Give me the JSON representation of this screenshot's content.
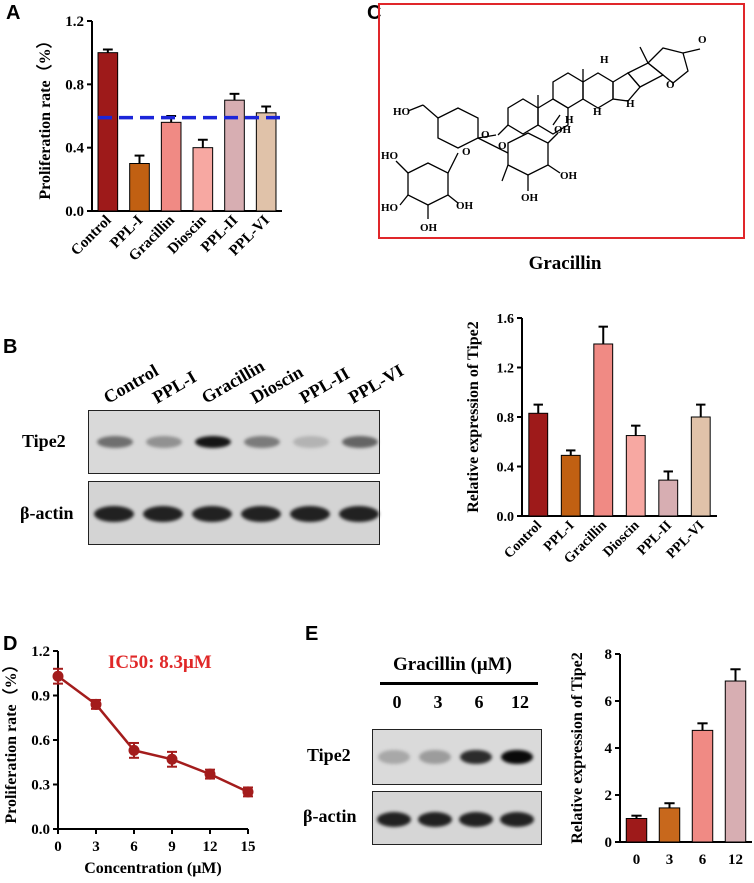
{
  "panels": {
    "A": "A",
    "B": "B",
    "C": "C",
    "D": "D",
    "E": "E"
  },
  "chartA": {
    "type": "bar",
    "ylabel": "Proliferation rate（%）",
    "ylim": [
      0,
      1.2
    ],
    "yticks": [
      "0.0",
      "0.4",
      "0.8",
      "1.2"
    ],
    "categories": [
      "Control",
      "PPL-I",
      "Gracillin",
      "Dioscin",
      "PPL-II",
      "PPL-VI"
    ],
    "values": [
      1.0,
      0.3,
      0.56,
      0.4,
      0.7,
      0.62
    ],
    "errors": [
      0.02,
      0.05,
      0.04,
      0.05,
      0.04,
      0.04
    ],
    "colors": [
      "#9e1a1a",
      "#c16012",
      "#f08a84",
      "#f7a8a2",
      "#d7aeb2",
      "#e0c2a9"
    ],
    "threshold": 0.59,
    "threshold_color": "#1b25d9"
  },
  "chartB": {
    "type": "bar",
    "ylabel": "Relative expression of Tipe2",
    "ylim": [
      0,
      1.6
    ],
    "yticks": [
      "0.0",
      "0.4",
      "0.8",
      "1.2",
      "1.6"
    ],
    "categories": [
      "Control",
      "PPL-I",
      "Gracillin",
      "Dioscin",
      "PPL-II",
      "PPL-VI"
    ],
    "values": [
      0.83,
      0.49,
      1.39,
      0.65,
      0.29,
      0.8
    ],
    "errors": [
      0.07,
      0.04,
      0.14,
      0.08,
      0.07,
      0.1
    ],
    "colors": [
      "#9e1a1a",
      "#c16012",
      "#f08a84",
      "#f7a8a2",
      "#d7aeb2",
      "#e0c2a9"
    ]
  },
  "chartD": {
    "type": "line",
    "xlabel": "Concentration (μM)",
    "ylabel": "Proliferation rate（%）",
    "xlim": [
      0,
      15
    ],
    "ylim": [
      0,
      1.2
    ],
    "xticks": [
      "0",
      "3",
      "6",
      "9",
      "12",
      "15"
    ],
    "yticks": [
      "0.0",
      "0.3",
      "0.6",
      "0.9",
      "1.2"
    ],
    "x": [
      0,
      3,
      6,
      9,
      12,
      15
    ],
    "values": [
      1.03,
      0.84,
      0.53,
      0.47,
      0.37,
      0.25
    ],
    "errors": [
      0.05,
      0.03,
      0.05,
      0.05,
      0.03,
      0.03
    ],
    "color": "#a31c1c",
    "annotation": "IC50: 8.3μM"
  },
  "chartE": {
    "type": "bar",
    "ylabel": "Relative expression of Tipe2",
    "ylim": [
      0,
      8
    ],
    "yticks": [
      "0",
      "2",
      "4",
      "6",
      "8"
    ],
    "categories": [
      "0",
      "3",
      "6",
      "12"
    ],
    "values": [
      1.0,
      1.45,
      4.75,
      6.85
    ],
    "errors": [
      0.12,
      0.2,
      0.3,
      0.5
    ],
    "colors": [
      "#9e1a1a",
      "#c8681c",
      "#f08a84",
      "#d7aeb2"
    ]
  },
  "blotB": {
    "lanes": [
      "Control",
      "PPL-I",
      "Gracillin",
      "Dioscin",
      "PPL-II",
      "PPL-VI"
    ],
    "row1_label": "Tipe2",
    "row2_label": "β-actin",
    "row1_intensity": [
      0.55,
      0.4,
      0.95,
      0.5,
      0.25,
      0.6
    ],
    "row2_intensity": [
      0.9,
      0.9,
      0.9,
      0.9,
      0.9,
      0.9
    ]
  },
  "blotE": {
    "title": "Gracillin (μM)",
    "lanes": [
      "0",
      "3",
      "6",
      "12"
    ],
    "row1_label": "Tipe2",
    "row2_label": "β-actin",
    "row1_intensity": [
      0.3,
      0.35,
      0.85,
      1.0
    ],
    "row2_intensity": [
      0.9,
      0.9,
      0.9,
      0.9
    ]
  },
  "molecule": {
    "name": "Gracillin",
    "labels": [
      "HO",
      "O",
      "OH",
      "H",
      "O",
      "O",
      "O",
      "OH",
      "HO",
      "OH",
      "HO",
      "OH",
      "OH",
      "O",
      "OH",
      "OH",
      "O",
      "H",
      "H",
      "H"
    ]
  }
}
